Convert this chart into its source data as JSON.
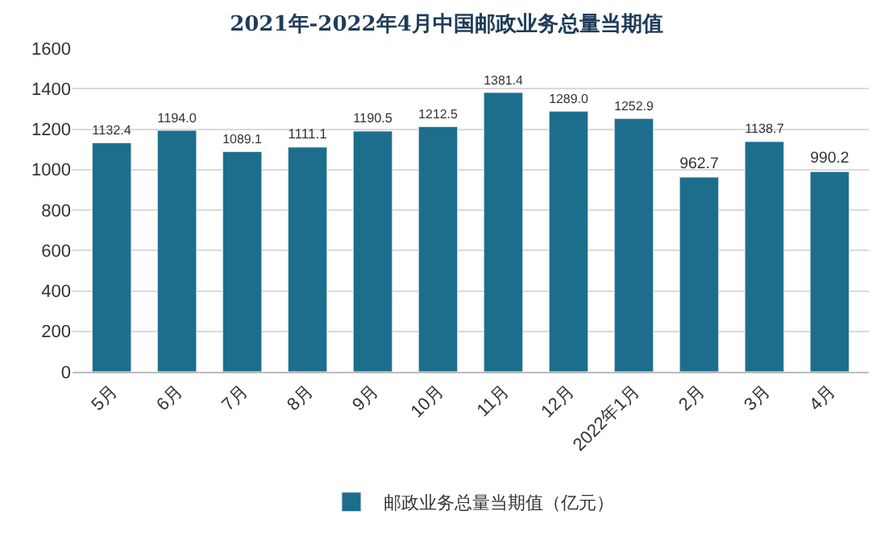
{
  "chart_data": {
    "type": "bar",
    "title": "2021年-2022年4月中国邮政业务总量当期值",
    "categories": [
      "5月",
      "6月",
      "7月",
      "8月",
      "9月",
      "10月",
      "11月",
      "12月",
      "2022年1月",
      "2月",
      "3月",
      "4月"
    ],
    "series": [
      {
        "name": "邮政业务总量当期值（亿元）",
        "color": "#1d6e8c",
        "values": [
          1132.4,
          1194.0,
          1089.1,
          1111.1,
          1190.5,
          1212.5,
          1381.4,
          1289.0,
          1252.9,
          962.7,
          1138.7,
          990.2
        ],
        "value_labels": [
          "1132.4",
          "1194.0",
          "1089.1",
          "1111.1",
          "1190.5",
          "1212.5",
          "1381.4",
          "1289.0",
          "1252.9",
          "962.7",
          "1138.7",
          "990.2"
        ]
      }
    ],
    "ylim": [
      0,
      1600
    ],
    "yticks": [
      0,
      200,
      400,
      600,
      800,
      1000,
      1200,
      1400,
      1600
    ],
    "grid": "y",
    "legend": "bottom"
  }
}
